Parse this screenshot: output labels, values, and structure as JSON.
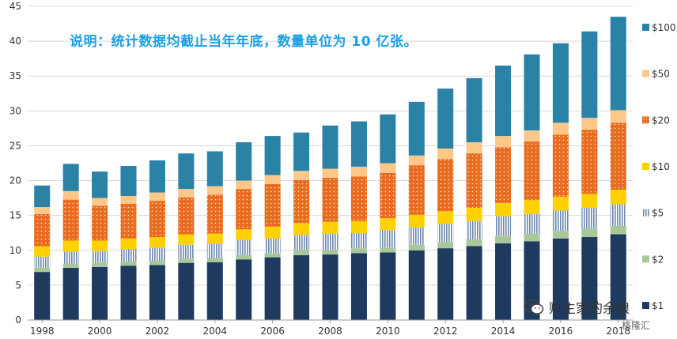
{
  "note": "说明：统计数据均截止当年年底，数量单位为 10 亿张。",
  "watermark": {
    "text": "财主家的余粮",
    "icon": "wechat-icon",
    "secondary": "格隆汇"
  },
  "chart_data": {
    "type": "bar",
    "stacked": true,
    "title": "",
    "xlabel": "",
    "ylabel": "",
    "ylim": [
      0,
      45
    ],
    "yticks": [
      0,
      5,
      10,
      15,
      20,
      25,
      30,
      35,
      40,
      45
    ],
    "x_tick_labels": [
      "1998",
      "2000",
      "2002",
      "2004",
      "2006",
      "2008",
      "2010",
      "2012",
      "2014",
      "2016",
      "2018"
    ],
    "categories": [
      "1998",
      "1999",
      "2000",
      "2001",
      "2002",
      "2003",
      "2004",
      "2005",
      "2006",
      "2007",
      "2008",
      "2009",
      "2010",
      "2011",
      "2012",
      "2013",
      "2014",
      "2015",
      "2016",
      "2017",
      "2018"
    ],
    "legend_position": "right",
    "series": [
      {
        "name": "$1",
        "color": "#1f3a5f",
        "pattern": "solid",
        "values": [
          6.9,
          7.5,
          7.6,
          7.8,
          7.9,
          8.2,
          8.3,
          8.7,
          9.0,
          9.3,
          9.4,
          9.6,
          9.7,
          10.0,
          10.3,
          10.6,
          11.0,
          11.3,
          11.7,
          11.9,
          12.3
        ]
      },
      {
        "name": "$2",
        "color": "#a9c89a",
        "pattern": "solid",
        "values": [
          0.6,
          0.6,
          0.6,
          0.6,
          0.6,
          0.6,
          0.6,
          0.6,
          0.6,
          0.8,
          0.7,
          0.7,
          0.7,
          0.8,
          0.9,
          1.0,
          1.1,
          1.1,
          1.1,
          1.2,
          1.2
        ]
      },
      {
        "name": "$5",
        "color": "#8da3c0",
        "pattern": "vstripe",
        "values": [
          1.6,
          1.7,
          1.7,
          1.8,
          1.9,
          2.0,
          2.0,
          2.2,
          2.1,
          2.1,
          2.3,
          2.2,
          2.5,
          2.5,
          2.6,
          2.6,
          2.8,
          2.8,
          2.9,
          3.0,
          3.1
        ]
      },
      {
        "name": "$10",
        "color": "#ffd100",
        "pattern": "solid",
        "values": [
          1.5,
          1.6,
          1.5,
          1.5,
          1.5,
          1.5,
          1.5,
          1.5,
          1.7,
          1.7,
          1.7,
          1.7,
          1.7,
          1.8,
          1.8,
          1.9,
          1.9,
          2.0,
          2.0,
          2.0,
          2.1
        ]
      },
      {
        "name": "$20",
        "color": "#e86b1f",
        "pattern": "dots",
        "values": [
          4.6,
          5.9,
          5.0,
          5.0,
          5.2,
          5.3,
          5.6,
          5.8,
          6.1,
          6.2,
          6.3,
          6.4,
          6.5,
          7.1,
          7.5,
          7.8,
          8.0,
          8.4,
          8.9,
          9.2,
          9.6
        ]
      },
      {
        "name": "$50",
        "color": "#fbc88a",
        "pattern": "solid",
        "values": [
          1.0,
          1.2,
          1.1,
          1.1,
          1.2,
          1.2,
          1.2,
          1.2,
          1.3,
          1.3,
          1.3,
          1.4,
          1.4,
          1.4,
          1.5,
          1.6,
          1.6,
          1.6,
          1.7,
          1.7,
          1.8
        ]
      },
      {
        "name": "$100",
        "color": "#2a82a6",
        "pattern": "solid",
        "values": [
          3.1,
          3.9,
          3.8,
          4.3,
          4.6,
          5.1,
          5.0,
          5.5,
          5.6,
          5.5,
          6.2,
          6.5,
          7.0,
          7.7,
          8.6,
          9.2,
          10.1,
          10.9,
          11.4,
          12.4,
          13.4
        ]
      }
    ]
  }
}
